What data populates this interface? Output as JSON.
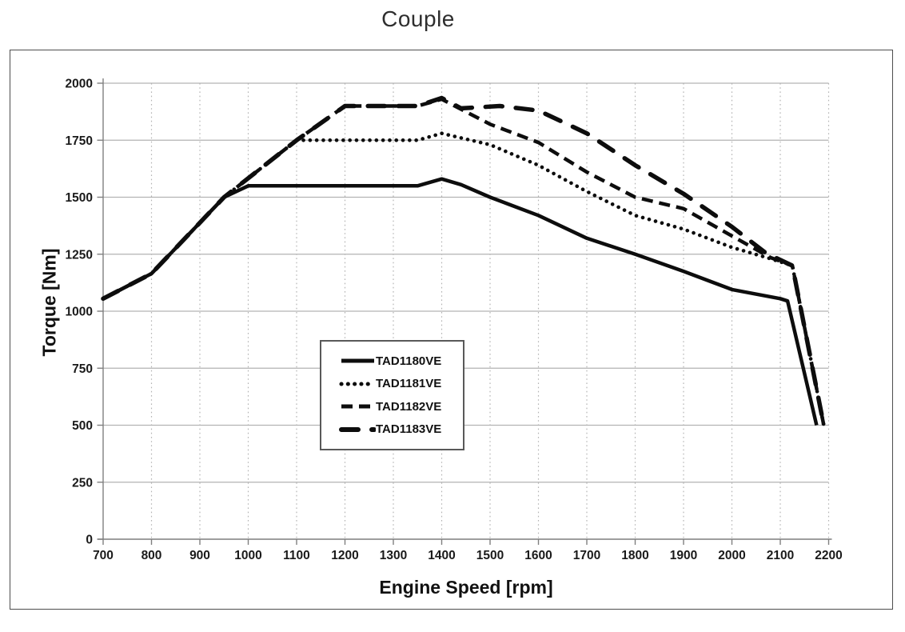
{
  "title": "Couple",
  "chart_data": {
    "type": "line",
    "title": "Couple",
    "xlabel": "Engine Speed [rpm]",
    "ylabel": "Torque [Nm]",
    "xlim": [
      700,
      2200
    ],
    "ylim": [
      0,
      2000
    ],
    "x_ticks": [
      700,
      800,
      900,
      1000,
      1100,
      1200,
      1300,
      1400,
      1500,
      1600,
      1700,
      1800,
      1900,
      2000,
      2100,
      2200
    ],
    "y_ticks": [
      0,
      250,
      500,
      750,
      1000,
      1250,
      1500,
      1750,
      2000
    ],
    "grid": {
      "horizontal": "solid",
      "vertical": "dotted"
    },
    "legend_position": "inside-left-center",
    "colors": {
      "line": "#0d0d0d",
      "grid": "#b3b3b3",
      "axis": "#7f7f7f",
      "tick_text": "#1a1a1a"
    },
    "series": [
      {
        "name": "TAD1180VE",
        "style": "solid",
        "points": [
          [
            700,
            1055
          ],
          [
            800,
            1165
          ],
          [
            950,
            1500
          ],
          [
            1000,
            1550
          ],
          [
            1350,
            1550
          ],
          [
            1400,
            1580
          ],
          [
            1440,
            1555
          ],
          [
            1500,
            1500
          ],
          [
            1600,
            1420
          ],
          [
            1700,
            1320
          ],
          [
            1800,
            1250
          ],
          [
            1900,
            1175
          ],
          [
            2000,
            1095
          ],
          [
            2100,
            1055
          ],
          [
            2115,
            1045
          ],
          [
            2175,
            500
          ]
        ]
      },
      {
        "name": "TAD1181VE",
        "style": "dotted",
        "points": [
          [
            700,
            1055
          ],
          [
            800,
            1165
          ],
          [
            950,
            1500
          ],
          [
            1100,
            1750
          ],
          [
            1350,
            1750
          ],
          [
            1400,
            1780
          ],
          [
            1500,
            1730
          ],
          [
            1600,
            1640
          ],
          [
            1700,
            1525
          ],
          [
            1800,
            1420
          ],
          [
            1900,
            1360
          ],
          [
            2000,
            1280
          ],
          [
            2080,
            1230
          ],
          [
            2125,
            1200
          ],
          [
            2190,
            500
          ]
        ]
      },
      {
        "name": "TAD1182VE",
        "style": "dashed",
        "points": [
          [
            700,
            1055
          ],
          [
            800,
            1165
          ],
          [
            950,
            1500
          ],
          [
            1100,
            1750
          ],
          [
            1200,
            1900
          ],
          [
            1350,
            1900
          ],
          [
            1400,
            1930
          ],
          [
            1500,
            1820
          ],
          [
            1600,
            1740
          ],
          [
            1700,
            1610
          ],
          [
            1800,
            1500
          ],
          [
            1900,
            1450
          ],
          [
            2000,
            1330
          ],
          [
            2080,
            1235
          ],
          [
            2125,
            1200
          ],
          [
            2190,
            500
          ]
        ]
      },
      {
        "name": "TAD1183VE",
        "style": "long-dash",
        "points": [
          [
            700,
            1055
          ],
          [
            800,
            1165
          ],
          [
            950,
            1500
          ],
          [
            1100,
            1750
          ],
          [
            1200,
            1900
          ],
          [
            1350,
            1900
          ],
          [
            1400,
            1935
          ],
          [
            1440,
            1890
          ],
          [
            1520,
            1900
          ],
          [
            1600,
            1880
          ],
          [
            1700,
            1780
          ],
          [
            1800,
            1640
          ],
          [
            1900,
            1515
          ],
          [
            2000,
            1370
          ],
          [
            2070,
            1255
          ],
          [
            2125,
            1200
          ],
          [
            2190,
            500
          ]
        ]
      }
    ]
  }
}
